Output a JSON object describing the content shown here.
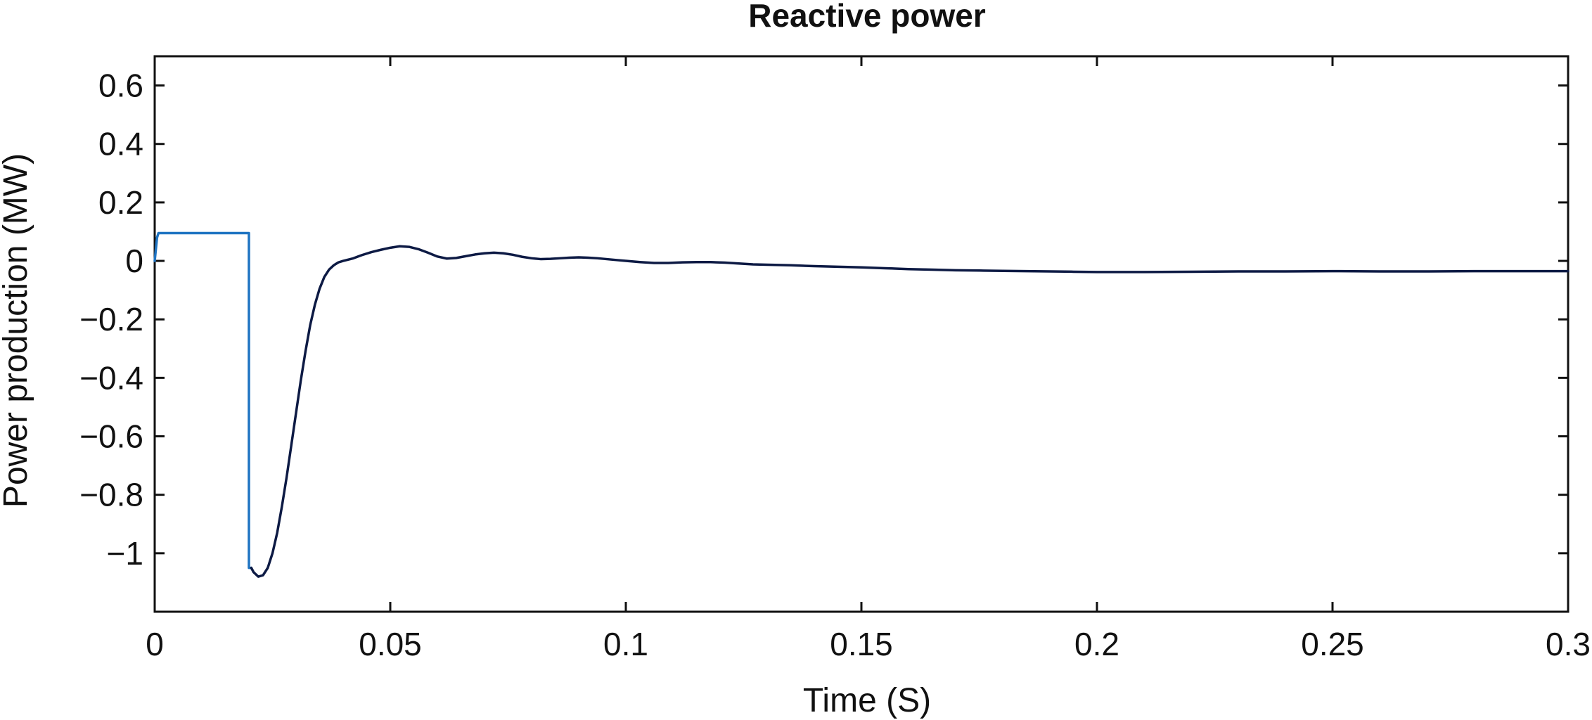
{
  "chart_data": {
    "type": "line",
    "title": "Reactive power",
    "xlabel": "Time (S)",
    "ylabel": "Power production (MW)",
    "xlim": [
      0,
      0.3
    ],
    "ylim": [
      -1.2,
      0.7
    ],
    "xticks": [
      0,
      0.05,
      0.1,
      0.15,
      0.2,
      0.25,
      0.3
    ],
    "xtick_labels": [
      "0",
      "0.05",
      "0.1",
      "0.15",
      "0.2",
      "0.25",
      "0.3"
    ],
    "yticks": [
      0.6,
      0.4,
      0.2,
      0,
      -0.2,
      -0.4,
      -0.6,
      -0.8,
      -1
    ],
    "ytick_labels": [
      "0.6",
      "0.4",
      "0.2",
      "0",
      "−0.2",
      "−0.4",
      "−0.6",
      "−0.8",
      "−1"
    ],
    "grid": false,
    "legend": "none",
    "series": [
      {
        "color": "#1f74c2",
        "x": [
          0,
          0.0005,
          0.0008,
          0.02,
          0.02,
          0.0205
        ],
        "y": [
          0,
          0.08,
          0.095,
          0.095,
          -1.05,
          -1.05
        ]
      },
      {
        "color": "#0d1a44",
        "x": [
          0.0205,
          0.021,
          0.022,
          0.023,
          0.024,
          0.025,
          0.026,
          0.027,
          0.028,
          0.029,
          0.03,
          0.031,
          0.032,
          0.033,
          0.034,
          0.035,
          0.036,
          0.037,
          0.038,
          0.039,
          0.04,
          0.042,
          0.044,
          0.046,
          0.048,
          0.05,
          0.052,
          0.054,
          0.056,
          0.058,
          0.06,
          0.062,
          0.064,
          0.066,
          0.068,
          0.07,
          0.072,
          0.074,
          0.076,
          0.078,
          0.08,
          0.082,
          0.084,
          0.086,
          0.088,
          0.09,
          0.092,
          0.094,
          0.096,
          0.098,
          0.1,
          0.103,
          0.106,
          0.109,
          0.112,
          0.115,
          0.118,
          0.121,
          0.124,
          0.127,
          0.13,
          0.135,
          0.14,
          0.145,
          0.15,
          0.155,
          0.16,
          0.165,
          0.17,
          0.175,
          0.18,
          0.185,
          0.19,
          0.195,
          0.2,
          0.21,
          0.22,
          0.23,
          0.24,
          0.25,
          0.26,
          0.27,
          0.28,
          0.29,
          0.3
        ],
        "y": [
          -1.05,
          -1.065,
          -1.08,
          -1.075,
          -1.05,
          -1.0,
          -0.93,
          -0.84,
          -0.74,
          -0.63,
          -0.52,
          -0.41,
          -0.31,
          -0.22,
          -0.15,
          -0.095,
          -0.055,
          -0.03,
          -0.015,
          -0.005,
          0.0,
          0.008,
          0.02,
          0.03,
          0.038,
          0.045,
          0.05,
          0.048,
          0.04,
          0.028,
          0.015,
          0.008,
          0.01,
          0.016,
          0.022,
          0.026,
          0.028,
          0.026,
          0.021,
          0.014,
          0.009,
          0.006,
          0.007,
          0.009,
          0.011,
          0.012,
          0.011,
          0.009,
          0.006,
          0.003,
          0.0,
          -0.004,
          -0.007,
          -0.007,
          -0.005,
          -0.004,
          -0.004,
          -0.006,
          -0.009,
          -0.012,
          -0.013,
          -0.015,
          -0.018,
          -0.02,
          -0.022,
          -0.025,
          -0.028,
          -0.03,
          -0.032,
          -0.033,
          -0.034,
          -0.035,
          -0.036,
          -0.037,
          -0.038,
          -0.038,
          -0.037,
          -0.036,
          -0.036,
          -0.035,
          -0.036,
          -0.036,
          -0.035,
          -0.035,
          -0.035
        ]
      }
    ]
  }
}
